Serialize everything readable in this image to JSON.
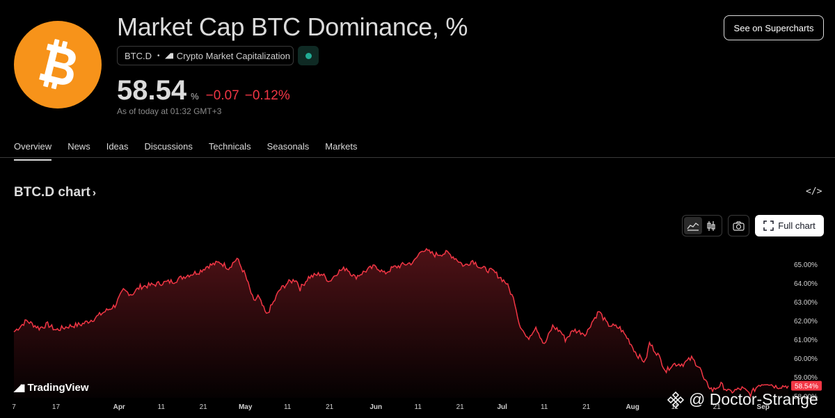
{
  "header": {
    "title": "Market Cap BTC Dominance, %",
    "symbol": "BTC.D",
    "exchange": "Crypto Market Capitalization",
    "price": "58.54",
    "unit": "%",
    "change_abs": "−0.07",
    "change_pct": "−0.12%",
    "as_of": "As of today at 01:32 GMT+3",
    "supercharts_label": "See on Supercharts",
    "status_color": "#22ab94",
    "change_color": "#f23645"
  },
  "tabs": [
    {
      "label": "Overview",
      "active": true
    },
    {
      "label": "News"
    },
    {
      "label": "Ideas"
    },
    {
      "label": "Discussions"
    },
    {
      "label": "Technicals"
    },
    {
      "label": "Seasonals"
    },
    {
      "label": "Markets"
    }
  ],
  "chart_section": {
    "title": "BTC.D chart",
    "embed_icon": "code-icon",
    "full_chart_label": "Full chart",
    "toolbar_icons": [
      "area-chart-icon",
      "candles-icon",
      "camera-icon",
      "fullscreen-icon"
    ]
  },
  "branding": {
    "tradingview": "TradingView",
    "watermark": "@ Doctor-Strange"
  },
  "chart_data": {
    "type": "area",
    "line_color": "#f23645",
    "yticks": [
      "65.00%",
      "64.00%",
      "63.00%",
      "62.00%",
      "61.00%",
      "60.00%",
      "59.00%",
      "58.00%"
    ],
    "ylim": [
      57.9,
      66.1
    ],
    "xticks": [
      {
        "label": "7",
        "day": 0
      },
      {
        "label": "17",
        "day": 10
      },
      {
        "label": "Apr",
        "day": 25,
        "bold": true
      },
      {
        "label": "11",
        "day": 35
      },
      {
        "label": "21",
        "day": 45
      },
      {
        "label": "May",
        "day": 55,
        "bold": true
      },
      {
        "label": "11",
        "day": 65
      },
      {
        "label": "21",
        "day": 75
      },
      {
        "label": "Jun",
        "day": 86,
        "bold": true
      },
      {
        "label": "11",
        "day": 96
      },
      {
        "label": "21",
        "day": 106
      },
      {
        "label": "Jul",
        "day": 116,
        "bold": true
      },
      {
        "label": "11",
        "day": 126
      },
      {
        "label": "21",
        "day": 136
      },
      {
        "label": "Aug",
        "day": 147,
        "bold": true
      },
      {
        "label": "11",
        "day": 157
      },
      {
        "label": "21",
        "day": 167
      },
      {
        "label": "Sep",
        "day": 178,
        "bold": true
      }
    ],
    "last_value_label": "58.54%",
    "x": [
      0,
      3,
      6,
      8,
      10,
      13,
      16,
      19,
      21,
      24,
      26,
      28,
      30,
      33,
      35,
      38,
      41,
      44,
      46,
      49,
      51,
      53,
      55,
      57,
      58,
      60,
      62,
      63,
      65,
      67,
      68,
      70,
      73,
      75,
      77,
      79,
      81,
      84,
      86,
      88,
      90,
      93,
      95,
      97,
      100,
      103,
      105,
      107,
      109,
      111,
      114,
      117,
      119,
      120,
      122,
      124,
      126,
      128,
      130,
      131,
      133,
      136,
      137,
      139,
      141,
      144,
      146,
      148,
      150,
      151,
      153,
      155,
      156,
      157,
      159,
      161,
      163,
      164,
      166,
      168,
      170,
      173,
      175,
      177,
      179,
      181,
      184
    ],
    "y": [
      61.4,
      62.0,
      61.6,
      61.8,
      61.5,
      61.7,
      61.8,
      62.1,
      62.4,
      62.8,
      63.6,
      63.4,
      63.8,
      63.9,
      64.0,
      64.1,
      64.4,
      64.6,
      64.9,
      65.1,
      64.8,
      65.3,
      64.4,
      63.0,
      63.3,
      62.3,
      63.1,
      63.6,
      64.0,
      64.2,
      63.7,
      64.3,
      64.5,
      64.1,
      64.6,
      64.8,
      64.3,
      64.7,
      64.9,
      64.5,
      64.8,
      65.0,
      65.1,
      65.8,
      65.5,
      65.6,
      65.3,
      64.9,
      65.2,
      64.8,
      64.6,
      64.0,
      63.0,
      61.9,
      61.0,
      61.7,
      60.7,
      61.7,
      61.4,
      61.0,
      61.5,
      61.3,
      61.8,
      62.5,
      61.8,
      61.6,
      61.0,
      60.2,
      59.8,
      60.8,
      60.2,
      59.3,
      59.6,
      59.7,
      59.7,
      60.0,
      59.5,
      58.8,
      58.3,
      58.6,
      58.2,
      58.4,
      58.1,
      58.6,
      58.7,
      58.5,
      58.54
    ]
  }
}
